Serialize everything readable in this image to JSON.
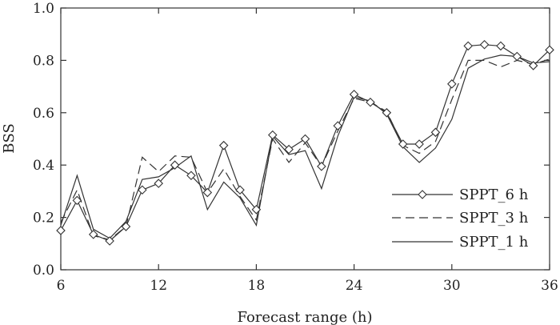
{
  "chart_data": {
    "type": "line",
    "xlabel": "Forecast range (h)",
    "ylabel": "BSS",
    "xlim": [
      6,
      36
    ],
    "ylim": [
      0.0,
      1.0
    ],
    "xticks": [
      6,
      12,
      18,
      24,
      30,
      36
    ],
    "yticks": [
      0.0,
      0.2,
      0.4,
      0.6,
      0.8,
      1.0
    ],
    "ytick_labels": [
      "0.0",
      "0.2",
      "0.4",
      "0.6",
      "0.8",
      "1.0"
    ],
    "grid": false,
    "legend_position": "bottom-right",
    "x": [
      6,
      7,
      8,
      9,
      10,
      11,
      12,
      13,
      14,
      15,
      16,
      17,
      18,
      19,
      20,
      21,
      22,
      23,
      24,
      25,
      26,
      27,
      28,
      29,
      30,
      31,
      32,
      33,
      34,
      35,
      36
    ],
    "series": [
      {
        "name": "SPPT_6 h",
        "style": "solid-diamond",
        "color": "#333333",
        "values": [
          0.15,
          0.265,
          0.135,
          0.11,
          0.165,
          0.305,
          0.33,
          0.4,
          0.36,
          0.295,
          0.475,
          0.305,
          0.23,
          0.515,
          0.46,
          0.5,
          0.395,
          0.55,
          0.67,
          0.64,
          0.6,
          0.48,
          0.48,
          0.525,
          0.71,
          0.855,
          0.86,
          0.855,
          0.815,
          0.78,
          0.84
        ]
      },
      {
        "name": "SPPT_3 h",
        "style": "dashed",
        "color": "#333333",
        "values": [
          0.18,
          0.305,
          0.13,
          0.115,
          0.165,
          0.43,
          0.375,
          0.435,
          0.43,
          0.295,
          0.385,
          0.28,
          0.19,
          0.5,
          0.41,
          0.485,
          0.395,
          0.53,
          0.655,
          0.64,
          0.605,
          0.475,
          0.445,
          0.49,
          0.65,
          0.8,
          0.8,
          0.775,
          0.8,
          0.785,
          0.805
        ]
      },
      {
        "name": "SPPT_1 h",
        "style": "solid",
        "color": "#333333",
        "values": [
          0.17,
          0.36,
          0.155,
          0.12,
          0.185,
          0.345,
          0.355,
          0.39,
          0.435,
          0.23,
          0.335,
          0.275,
          0.17,
          0.51,
          0.44,
          0.455,
          0.31,
          0.51,
          0.66,
          0.645,
          0.595,
          0.47,
          0.41,
          0.465,
          0.575,
          0.77,
          0.805,
          0.82,
          0.815,
          0.79,
          0.795
        ]
      }
    ]
  }
}
